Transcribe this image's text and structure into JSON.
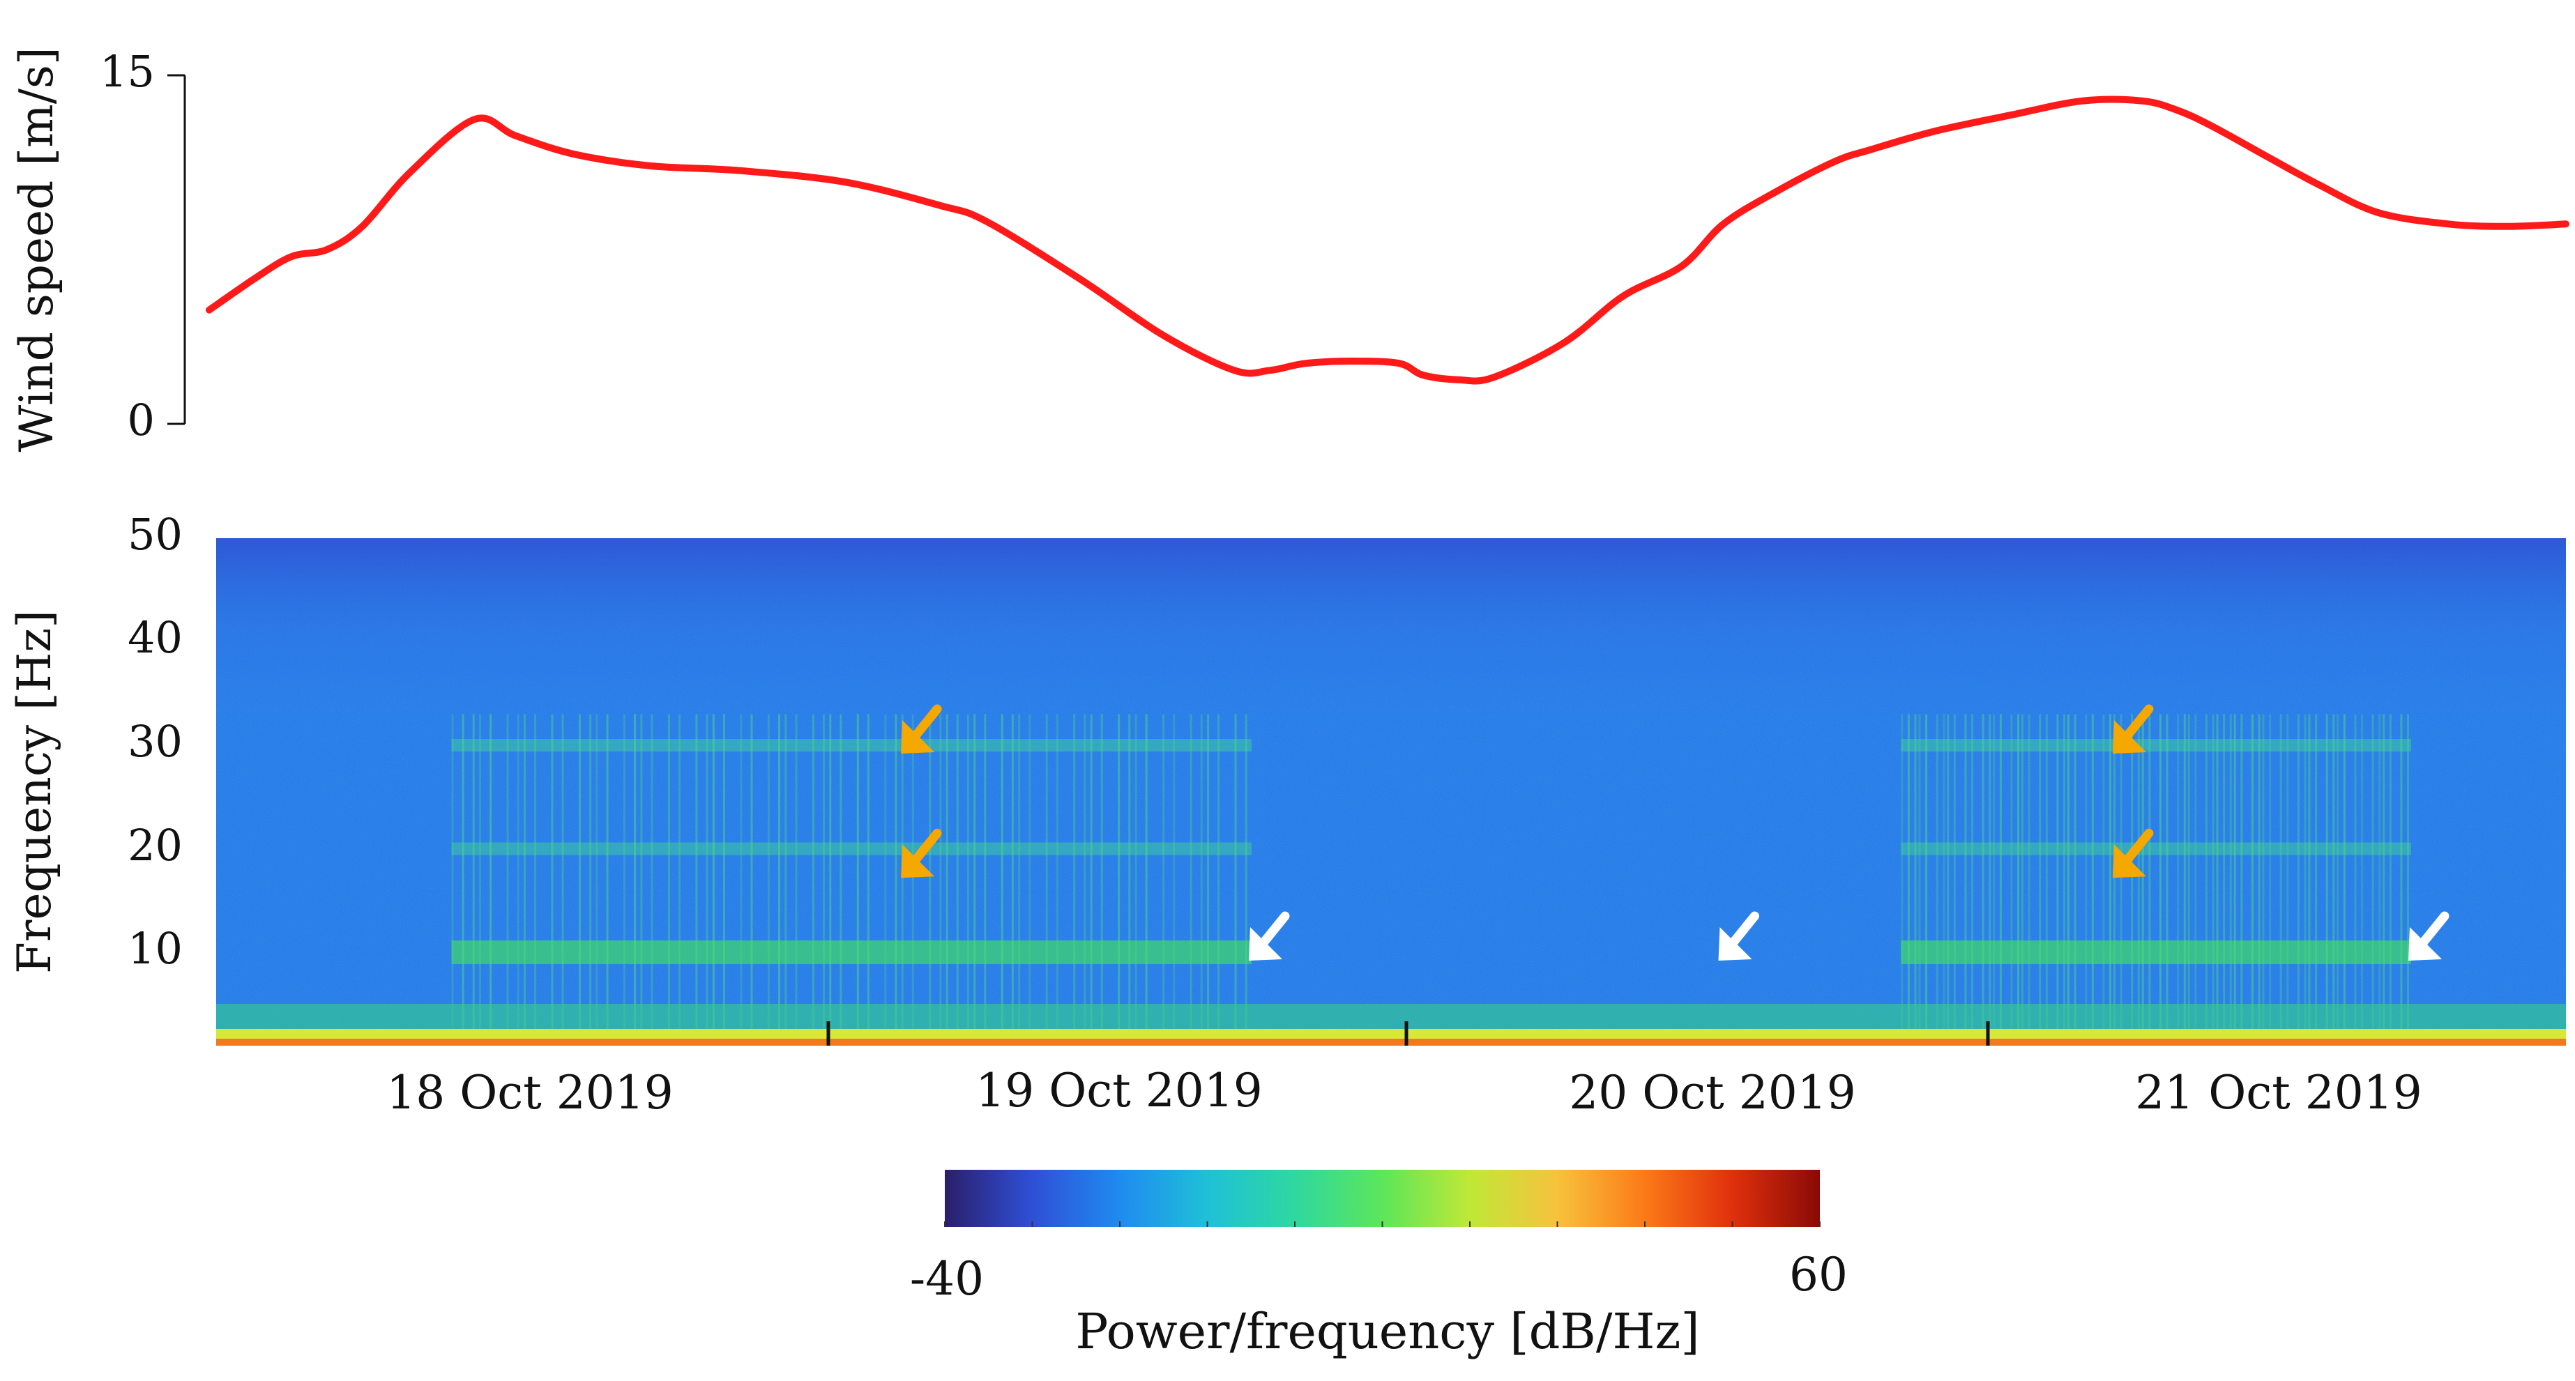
{
  "chart_data": [
    {
      "type": "line",
      "ylabel": "Wind speed [m/s]",
      "ylim": [
        0,
        15
      ],
      "yticks": [
        "0",
        "15"
      ],
      "xlim": [
        0,
        4
      ],
      "series": [
        {
          "color": "#ff1a1a",
          "x": [
            0.0,
            0.08,
            0.14,
            0.2,
            0.26,
            0.34,
            0.45,
            0.52,
            0.62,
            0.75,
            0.9,
            1.08,
            1.24,
            1.32,
            1.48,
            1.62,
            1.74,
            1.8,
            1.86,
            1.94,
            2.02,
            2.06,
            2.12,
            2.18,
            2.3,
            2.4,
            2.5,
            2.57,
            2.66,
            2.76,
            2.82,
            2.93,
            3.06,
            3.18,
            3.28,
            3.34,
            3.4,
            3.5,
            3.58,
            3.68,
            3.8,
            3.9,
            4.0
          ],
          "y": [
            4.9,
            6.3,
            7.2,
            7.5,
            8.5,
            10.8,
            13.1,
            12.4,
            11.6,
            11.1,
            10.9,
            10.4,
            9.4,
            8.7,
            6.2,
            3.8,
            2.3,
            2.3,
            2.6,
            2.7,
            2.6,
            2.1,
            1.9,
            2.0,
            3.5,
            5.5,
            6.8,
            8.6,
            10.0,
            11.3,
            11.8,
            12.6,
            13.3,
            13.9,
            13.9,
            13.5,
            12.8,
            11.4,
            10.3,
            9.1,
            8.6,
            8.5,
            8.6
          ]
        }
      ]
    },
    {
      "type": "heatmap",
      "ylabel": "Frequency [Hz]",
      "ylim": [
        1,
        50
      ],
      "yticks": [
        "10",
        "20",
        "30",
        "40",
        "50"
      ],
      "xticks": [
        "18 Oct 2019",
        "19 Oct 2019",
        "20 Oct 2019",
        "21 Oct 2019"
      ],
      "colorbar": {
        "label": "Power/frequency [dB/Hz]",
        "min_label": "-40",
        "max_label": "60",
        "range": [
          -40,
          60
        ],
        "colors": [
          "#2b1f6b",
          "#2f4fd6",
          "#1f8bf0",
          "#1fc0d8",
          "#2fd8a0",
          "#5ce65a",
          "#bfe838",
          "#f7c23c",
          "#fb7a18",
          "#e0300c",
          "#8a0a06"
        ]
      },
      "background_level_db": -12,
      "bands_hz": [
        30,
        20,
        10
      ],
      "arrows": [
        {
          "color": "#f5a800",
          "day": 1.13,
          "freq_hz": 30
        },
        {
          "color": "#f5a800",
          "day": 1.13,
          "freq_hz": 18
        },
        {
          "color": "#ffffff",
          "day": 1.73,
          "freq_hz": 10
        },
        {
          "color": "#ffffff",
          "day": 2.54,
          "freq_hz": 10
        },
        {
          "color": "#f5a800",
          "day": 3.22,
          "freq_hz": 30
        },
        {
          "color": "#f5a800",
          "day": 3.22,
          "freq_hz": 18
        },
        {
          "color": "#ffffff",
          "day": 3.73,
          "freq_hz": 10
        }
      ]
    }
  ]
}
